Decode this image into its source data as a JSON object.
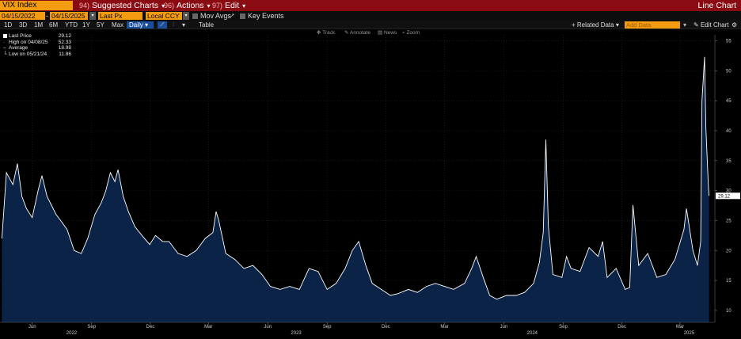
{
  "topbar": {
    "ticker": "VIX Index",
    "menus": [
      {
        "num": "94)",
        "label": "Suggested Charts"
      },
      {
        "num": "96)",
        "label": "Actions"
      },
      {
        "num": "97)",
        "label": "Edit"
      }
    ],
    "title": "Line Chart"
  },
  "bar2": {
    "start_date": "04/15/2022",
    "end_date": "04/15/2025",
    "field": "Last Px",
    "currency": "Local CCY",
    "mov_avgs": "Mov Avgs",
    "key_events": "Key Events"
  },
  "bar3": {
    "periods": [
      "1D",
      "3D",
      "1M",
      "6M",
      "YTD",
      "1Y",
      "5Y",
      "Max"
    ],
    "frequency": "Daily",
    "table": "Table",
    "related": "+ Related Data",
    "add_placeholder": "Add Data",
    "edit_chart": "Edit Chart"
  },
  "toolbar": [
    "Track",
    "Annotate",
    "News",
    "Zoom"
  ],
  "legend": {
    "rows": [
      {
        "label": "Last Price",
        "value": "29.12"
      },
      {
        "label": "High on 04/08/25",
        "value": "52.33"
      },
      {
        "label": "Average",
        "value": "18.98"
      },
      {
        "label": "Low on 05/21/24",
        "value": "11.86"
      }
    ]
  },
  "colors": {
    "background": "#000000",
    "line": "#ffffff",
    "fill": "#0b2347",
    "topbar": "#8b0b12",
    "field": "#f39c12",
    "accent_blue": "#1b4f9c"
  },
  "chart_data": {
    "type": "area",
    "ylim": [
      8,
      56
    ],
    "y_ticks": [
      10,
      15,
      20,
      25,
      30,
      35,
      40,
      45,
      50,
      55
    ],
    "last_value_label": "29.12",
    "x_month_ticks": [
      {
        "date": "2022-06-01",
        "label": "Jun"
      },
      {
        "date": "2022-09-01",
        "label": "Sep"
      },
      {
        "date": "2022-12-01",
        "label": "Dec"
      },
      {
        "date": "2023-03-01",
        "label": "Mar"
      },
      {
        "date": "2023-06-01",
        "label": "Jun"
      },
      {
        "date": "2023-09-01",
        "label": "Sep"
      },
      {
        "date": "2023-12-01",
        "label": "Dec"
      },
      {
        "date": "2024-03-01",
        "label": "Mar"
      },
      {
        "date": "2024-06-01",
        "label": "Jun"
      },
      {
        "date": "2024-09-01",
        "label": "Sep"
      },
      {
        "date": "2024-12-01",
        "label": "Dec"
      },
      {
        "date": "2025-03-01",
        "label": "Mar"
      }
    ],
    "x_year_labels": [
      {
        "date": "2022-08-01",
        "label": "2022"
      },
      {
        "date": "2023-07-15",
        "label": "2023"
      },
      {
        "date": "2024-07-15",
        "label": "2024"
      },
      {
        "date": "2025-03-15",
        "label": "2025"
      }
    ],
    "x": [
      "2022-04-15",
      "2022-04-22",
      "2022-05-02",
      "2022-05-09",
      "2022-05-16",
      "2022-05-23",
      "2022-06-01",
      "2022-06-10",
      "2022-06-16",
      "2022-06-24",
      "2022-07-01",
      "2022-07-08",
      "2022-07-15",
      "2022-07-25",
      "2022-08-05",
      "2022-08-16",
      "2022-08-26",
      "2022-09-06",
      "2022-09-16",
      "2022-09-23",
      "2022-09-30",
      "2022-10-07",
      "2022-10-12",
      "2022-10-20",
      "2022-10-28",
      "2022-11-07",
      "2022-11-18",
      "2022-11-30",
      "2022-12-09",
      "2022-12-20",
      "2022-12-30",
      "2023-01-13",
      "2023-01-27",
      "2023-02-10",
      "2023-02-24",
      "2023-03-08",
      "2023-03-13",
      "2023-03-17",
      "2023-03-28",
      "2023-04-11",
      "2023-04-25",
      "2023-05-09",
      "2023-05-23",
      "2023-06-05",
      "2023-06-20",
      "2023-07-05",
      "2023-07-20",
      "2023-08-04",
      "2023-08-18",
      "2023-09-01",
      "2023-09-15",
      "2023-09-29",
      "2023-10-10",
      "2023-10-20",
      "2023-10-31",
      "2023-11-10",
      "2023-11-24",
      "2023-12-08",
      "2023-12-20",
      "2024-01-05",
      "2024-01-19",
      "2024-02-02",
      "2024-02-16",
      "2024-03-01",
      "2024-03-15",
      "2024-04-01",
      "2024-04-12",
      "2024-04-19",
      "2024-04-30",
      "2024-05-10",
      "2024-05-21",
      "2024-06-05",
      "2024-06-20",
      "2024-07-03",
      "2024-07-17",
      "2024-07-26",
      "2024-08-01",
      "2024-08-05",
      "2024-08-09",
      "2024-08-16",
      "2024-08-30",
      "2024-09-06",
      "2024-09-13",
      "2024-09-27",
      "2024-10-11",
      "2024-10-25",
      "2024-11-01",
      "2024-11-08",
      "2024-11-22",
      "2024-12-06",
      "2024-12-13",
      "2024-12-18",
      "2024-12-27",
      "2025-01-10",
      "2025-01-24",
      "2025-02-07",
      "2025-02-21",
      "2025-03-07",
      "2025-03-11",
      "2025-03-21",
      "2025-03-28",
      "2025-04-02",
      "2025-04-04",
      "2025-04-08",
      "2025-04-10",
      "2025-04-14",
      "2025-04-15"
    ],
    "values": [
      22.0,
      33.0,
      31.0,
      34.5,
      29.0,
      27.0,
      25.5,
      30.0,
      32.5,
      29.0,
      27.5,
      26.0,
      25.0,
      23.5,
      20.0,
      19.5,
      22.0,
      26.0,
      28.0,
      30.0,
      33.0,
      31.5,
      33.5,
      29.0,
      26.5,
      24.0,
      22.5,
      21.0,
      22.5,
      21.5,
      21.5,
      19.5,
      19.0,
      20.0,
      22.0,
      23.0,
      26.5,
      25.0,
      19.5,
      18.5,
      17.0,
      17.5,
      16.0,
      14.0,
      13.5,
      14.0,
      13.5,
      17.0,
      16.5,
      13.5,
      14.5,
      17.0,
      20.0,
      21.5,
      17.5,
      14.5,
      13.5,
      12.5,
      12.8,
      13.5,
      13.0,
      14.0,
      14.5,
      14.0,
      13.5,
      14.5,
      17.0,
      19.0,
      15.5,
      12.5,
      11.86,
      12.5,
      12.5,
      13.0,
      14.5,
      18.0,
      23.0,
      38.5,
      24.0,
      16.0,
      15.5,
      19.0,
      17.0,
      16.5,
      20.5,
      19.0,
      21.5,
      15.5,
      17.0,
      13.5,
      13.8,
      27.6,
      17.5,
      19.5,
      15.5,
      16.0,
      18.5,
      23.5,
      27.0,
      20.0,
      17.5,
      21.5,
      45.0,
      52.33,
      40.5,
      30.5,
      29.12
    ]
  }
}
